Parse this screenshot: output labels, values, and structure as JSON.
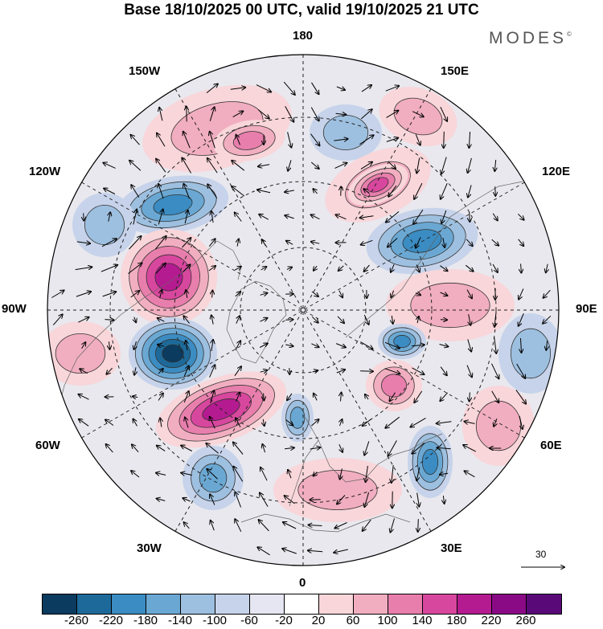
{
  "title": "Base 18/10/2025 00 UTC, valid 19/10/2025 21 UTC",
  "brand": "MODES",
  "brand_mark": "©",
  "longitudes": {
    "top": "180",
    "top_left": "150W",
    "top_right": "150E",
    "upper_left": "120W",
    "upper_right": "120E",
    "left": "90W",
    "right": "90E",
    "lower_left": "60W",
    "lower_right": "60E",
    "bottom_left": "30W",
    "bottom_right": "30E",
    "bottom": "0"
  },
  "reference_vector": "30",
  "colorbar": {
    "colors": [
      "#0b3b5e",
      "#1d6a9a",
      "#3b8cc2",
      "#6aa8d3",
      "#9ec0e0",
      "#c6d3ea",
      "#e6e6f3",
      "#ffffff",
      "#f8d6da",
      "#f1aec0",
      "#e87eac",
      "#d8479e",
      "#b51b90",
      "#8a0a86",
      "#5a0a78"
    ],
    "ticks": [
      "-260",
      "-220",
      "-180",
      "-140",
      "-100",
      "-60",
      "-20",
      "20",
      "60",
      "100",
      "140",
      "180",
      "220",
      "260"
    ]
  },
  "anomalies": [
    {
      "sign": "+",
      "amp": 1.2
    },
    {
      "sign": "+",
      "amp": 1.6
    },
    {
      "sign": "-",
      "amp": 1.0
    },
    {
      "sign": "+",
      "amp": 1.0
    },
    {
      "sign": "-",
      "amp": 1.8
    },
    {
      "sign": "+",
      "amp": 2.6
    },
    {
      "sign": "-",
      "amp": 2.2
    },
    {
      "sign": "-",
      "amp": 3.2
    },
    {
      "sign": "+",
      "amp": 1.0
    },
    {
      "sign": "+",
      "amp": 2.7
    },
    {
      "sign": "-",
      "amp": 1.8
    },
    {
      "sign": "-",
      "amp": 1.4
    },
    {
      "sign": "-",
      "amp": 1.8
    },
    {
      "sign": "+",
      "amp": 1.0
    },
    {
      "sign": "+",
      "amp": 0.8
    },
    {
      "sign": "+",
      "amp": 1.5
    },
    {
      "sign": "+",
      "amp": 2.0
    },
    {
      "sign": "-",
      "amp": 1.3
    },
    {
      "sign": "+",
      "amp": 1.2
    },
    {
      "sign": "-",
      "amp": 1.0
    },
    {
      "sign": "+",
      "amp": 0.8
    },
    {
      "sign": "-",
      "amp": 0.8
    }
  ]
}
